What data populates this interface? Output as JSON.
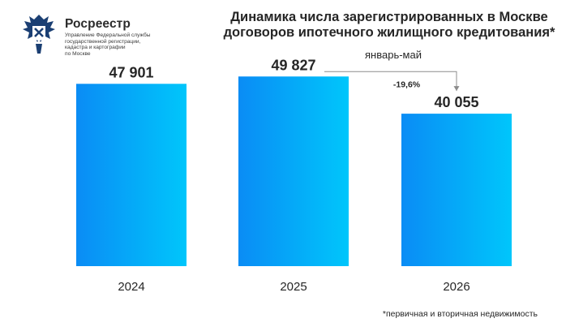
{
  "org": {
    "name": "Росреестр",
    "subtitle": "Управление Федеральной службы\nгосударственной регистрации,\nкадастра и картографии\nпо Москве"
  },
  "header": {
    "title": "Динамика числа зарегистрированных в Москве\nдоговоров ипотечного жилищного кредитования*",
    "subtitle": "январь-май"
  },
  "footnote": "*первичная и вторичная недвижимость",
  "colors": {
    "bar_gradient_start": "#0a8cf5",
    "bar_gradient_end": "#00c6fb",
    "text": "#262626",
    "connector": "#8c8c8c",
    "logo": "#1b3f73"
  },
  "chart_data": {
    "type": "bar",
    "categories": [
      "2024",
      "2025",
      "2026"
    ],
    "values": [
      47901,
      49827,
      40055
    ],
    "value_labels": [
      "47 901",
      "49 827",
      "40 055"
    ],
    "ylim": [
      0,
      55000
    ],
    "grid": false,
    "annotation": {
      "text": "-19,6%",
      "from_category": "2025",
      "to_category": "2026"
    }
  }
}
